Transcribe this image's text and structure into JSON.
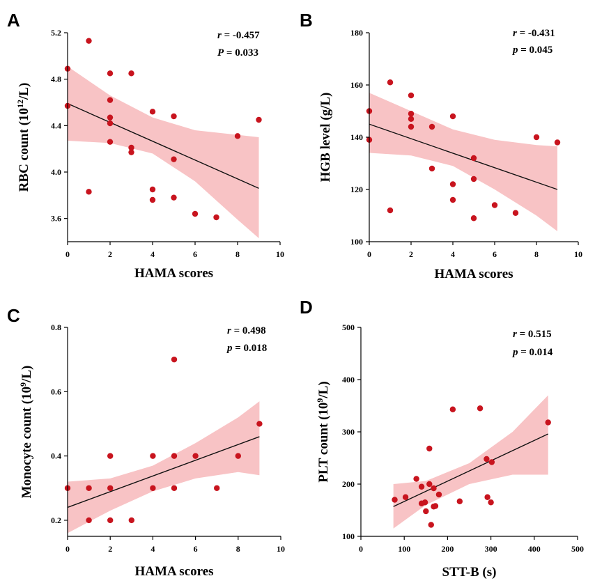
{
  "chart_data": [
    {
      "panel": "A",
      "type": "scatter",
      "xlabel": "HAMA scores",
      "ylabel_main": "RBC count (10",
      "ylabel_sup": "12",
      "ylabel_tail": "/L)",
      "xlim": [
        0,
        10
      ],
      "ylim": [
        3.4,
        5.2
      ],
      "xticks": [
        0,
        2,
        4,
        6,
        8,
        10
      ],
      "xtick_labels": [
        "0",
        "2",
        "4",
        "6",
        "8",
        "10"
      ],
      "yticks": [
        3.6,
        4.0,
        4.4,
        4.8,
        5.2
      ],
      "ytick_labels": [
        "3.6",
        "4.0",
        "4.4",
        "4.8",
        "5.2"
      ],
      "r_label": "r",
      "r_value": " = -0.457",
      "p_label": "P",
      "p_value": " = 0.033",
      "points": [
        [
          0,
          4.89
        ],
        [
          0,
          4.57
        ],
        [
          1,
          5.13
        ],
        [
          1,
          3.83
        ],
        [
          2,
          4.85
        ],
        [
          2,
          4.62
        ],
        [
          2,
          4.47
        ],
        [
          2,
          4.42
        ],
        [
          2,
          4.26
        ],
        [
          3,
          4.85
        ],
        [
          3,
          4.21
        ],
        [
          3,
          4.17
        ],
        [
          4,
          4.52
        ],
        [
          4,
          3.85
        ],
        [
          4,
          3.76
        ],
        [
          5,
          4.48
        ],
        [
          5,
          4.11
        ],
        [
          5,
          3.78
        ],
        [
          6,
          3.64
        ],
        [
          7,
          3.61
        ],
        [
          8,
          4.31
        ],
        [
          9,
          4.45
        ]
      ],
      "fit": [
        [
          0,
          4.59
        ],
        [
          9,
          3.86
        ]
      ],
      "ci_upper": [
        [
          0,
          4.91
        ],
        [
          2,
          4.66
        ],
        [
          4,
          4.47
        ],
        [
          6,
          4.36
        ],
        [
          8,
          4.32
        ],
        [
          9,
          4.3
        ]
      ],
      "ci_lower": [
        [
          0,
          4.27
        ],
        [
          2,
          4.25
        ],
        [
          4,
          4.16
        ],
        [
          6,
          3.92
        ],
        [
          8,
          3.59
        ],
        [
          9,
          3.43
        ]
      ],
      "point_color": "#c8141e",
      "band_color": "#f7b9bb",
      "line_color": "#111111"
    },
    {
      "panel": "B",
      "type": "scatter",
      "xlabel": "HAMA scores",
      "ylabel_main": "HGB level (g/L)",
      "ylabel_sup": "",
      "ylabel_tail": "",
      "xlim": [
        0,
        10
      ],
      "ylim": [
        100,
        180
      ],
      "xticks": [
        0,
        2,
        4,
        6,
        8,
        10
      ],
      "xtick_labels": [
        "0",
        "2",
        "4",
        "6",
        "8",
        "10"
      ],
      "yticks": [
        100,
        120,
        140,
        160,
        180
      ],
      "ytick_labels": [
        "100",
        "120",
        "140",
        "160",
        "180"
      ],
      "r_label": "r",
      "r_value": " = -0.431",
      "p_label": "p",
      "p_value": " = 0.045",
      "points": [
        [
          0,
          150
        ],
        [
          0,
          139
        ],
        [
          1,
          161
        ],
        [
          1,
          112
        ],
        [
          2,
          156
        ],
        [
          2,
          149
        ],
        [
          2,
          147
        ],
        [
          2,
          144
        ],
        [
          3,
          144
        ],
        [
          3,
          128
        ],
        [
          4,
          148
        ],
        [
          4,
          122
        ],
        [
          4,
          116
        ],
        [
          5,
          132
        ],
        [
          5,
          124
        ],
        [
          5,
          109
        ],
        [
          6,
          114
        ],
        [
          7,
          111
        ],
        [
          8,
          140
        ],
        [
          9,
          138
        ]
      ],
      "fit": [
        [
          0,
          145
        ],
        [
          9,
          120
        ]
      ],
      "ci_upper": [
        [
          0,
          157
        ],
        [
          2,
          150
        ],
        [
          4,
          143
        ],
        [
          6,
          139
        ],
        [
          8,
          137
        ],
        [
          9,
          136.5
        ]
      ],
      "ci_lower": [
        [
          0,
          134
        ],
        [
          2,
          133
        ],
        [
          4,
          129
        ],
        [
          6,
          120
        ],
        [
          8,
          110
        ],
        [
          9,
          104
        ]
      ],
      "point_color": "#c8141e",
      "band_color": "#f7b9bb",
      "line_color": "#111111"
    },
    {
      "panel": "C",
      "type": "scatter",
      "xlabel": "HAMA scores",
      "ylabel_main": "Monocyte count (10",
      "ylabel_sup": "9",
      "ylabel_tail": "/L)",
      "xlim": [
        0,
        10
      ],
      "ylim": [
        0.15,
        0.8
      ],
      "xticks": [
        0,
        2,
        4,
        6,
        8,
        10
      ],
      "xtick_labels": [
        "0",
        "2",
        "4",
        "6",
        "8",
        "10"
      ],
      "yticks": [
        0.2,
        0.4,
        0.6,
        0.8
      ],
      "ytick_labels": [
        "0.2",
        "0.4",
        "0.6",
        "0.8"
      ],
      "r_label": "r",
      "r_value": " = 0.498",
      "p_label": "p",
      "p_value": " = 0.018",
      "points": [
        [
          0,
          0.3
        ],
        [
          1,
          0.3
        ],
        [
          1,
          0.2
        ],
        [
          2,
          0.4
        ],
        [
          2,
          0.3
        ],
        [
          2,
          0.2
        ],
        [
          3,
          0.2
        ],
        [
          4,
          0.4
        ],
        [
          4,
          0.3
        ],
        [
          5,
          0.7
        ],
        [
          5,
          0.4
        ],
        [
          5,
          0.3
        ],
        [
          6,
          0.4
        ],
        [
          7,
          0.3
        ],
        [
          8,
          0.4
        ],
        [
          9,
          0.5
        ]
      ],
      "fit": [
        [
          0,
          0.24
        ],
        [
          9,
          0.46
        ]
      ],
      "ci_upper": [
        [
          0,
          0.32
        ],
        [
          2,
          0.33
        ],
        [
          4,
          0.37
        ],
        [
          6,
          0.44
        ],
        [
          8,
          0.52
        ],
        [
          9,
          0.57
        ]
      ],
      "ci_lower": [
        [
          0,
          0.16
        ],
        [
          2,
          0.23
        ],
        [
          4,
          0.29
        ],
        [
          6,
          0.33
        ],
        [
          8,
          0.35
        ],
        [
          9,
          0.34
        ]
      ],
      "point_color": "#c8141e",
      "band_color": "#f7b9bb",
      "line_color": "#111111"
    },
    {
      "panel": "D",
      "type": "scatter",
      "xlabel": "STT-B (s)",
      "ylabel_main": "PLT count (10",
      "ylabel_sup": "9",
      "ylabel_tail": "/L)",
      "xlim": [
        0,
        500
      ],
      "ylim": [
        100,
        500
      ],
      "xticks": [
        0,
        100,
        200,
        300,
        400,
        500
      ],
      "xtick_labels": [
        "0",
        "100",
        "200",
        "300",
        "400",
        "500"
      ],
      "yticks": [
        100,
        200,
        300,
        400,
        500
      ],
      "ytick_labels": [
        "100",
        "200",
        "300",
        "400",
        "500"
      ],
      "r_label": "r",
      "r_value": " = 0.515",
      "p_label": "p",
      "p_value": " = 0.014",
      "points": [
        [
          78,
          170
        ],
        [
          103,
          175
        ],
        [
          128,
          210
        ],
        [
          140,
          195
        ],
        [
          140,
          163
        ],
        [
          148,
          165
        ],
        [
          150,
          148
        ],
        [
          158,
          268
        ],
        [
          158,
          200
        ],
        [
          162,
          122
        ],
        [
          168,
          192
        ],
        [
          168,
          157
        ],
        [
          172,
          158
        ],
        [
          180,
          180
        ],
        [
          212,
          343
        ],
        [
          228,
          167
        ],
        [
          275,
          345
        ],
        [
          290,
          248
        ],
        [
          292,
          175
        ],
        [
          300,
          165
        ],
        [
          302,
          242
        ],
        [
          432,
          318
        ]
      ],
      "fit": [
        [
          75,
          157
        ],
        [
          432,
          296
        ]
      ],
      "ci_upper": [
        [
          75,
          200
        ],
        [
          150,
          206
        ],
        [
          250,
          240
        ],
        [
          350,
          300
        ],
        [
          432,
          370
        ]
      ],
      "ci_lower": [
        [
          75,
          115
        ],
        [
          150,
          160
        ],
        [
          250,
          200
        ],
        [
          350,
          218
        ],
        [
          432,
          218
        ]
      ],
      "point_color": "#c8141e",
      "band_color": "#f7b9bb",
      "line_color": "#111111"
    }
  ]
}
